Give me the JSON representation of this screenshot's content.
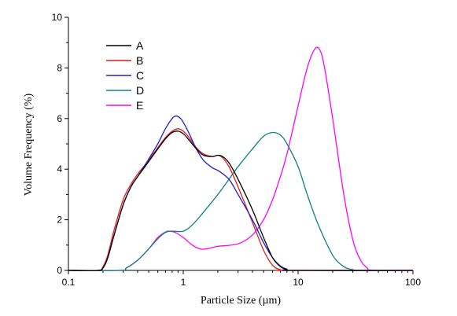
{
  "chart_data": {
    "type": "line",
    "title": "",
    "xlabel": "Particle Size (µm)",
    "ylabel": "Volume Frequency (%)",
    "xscale": "log",
    "xlim": [
      0.1,
      100
    ],
    "ylim": [
      0,
      10
    ],
    "xticks": [
      0.1,
      1,
      10,
      100
    ],
    "xtick_labels": [
      "0.1",
      "1",
      "10",
      "100"
    ],
    "yticks": [
      0,
      2,
      4,
      6,
      8,
      10
    ],
    "ytick_labels": [
      "0",
      "2",
      "4",
      "6",
      "8",
      "10"
    ],
    "grid": false,
    "legend_position": "top-left",
    "series": [
      {
        "name": "A",
        "color": "#000000",
        "points": [
          [
            0.1,
            0
          ],
          [
            0.18,
            0
          ],
          [
            0.2,
            0.1
          ],
          [
            0.22,
            0.5
          ],
          [
            0.25,
            1.4
          ],
          [
            0.3,
            2.6
          ],
          [
            0.35,
            3.3
          ],
          [
            0.4,
            3.7
          ],
          [
            0.5,
            4.3
          ],
          [
            0.6,
            4.8
          ],
          [
            0.7,
            5.2
          ],
          [
            0.8,
            5.45
          ],
          [
            0.9,
            5.5
          ],
          [
            1.0,
            5.4
          ],
          [
            1.1,
            5.2
          ],
          [
            1.3,
            4.8
          ],
          [
            1.5,
            4.55
          ],
          [
            1.8,
            4.5
          ],
          [
            2.0,
            4.55
          ],
          [
            2.2,
            4.5
          ],
          [
            2.5,
            4.25
          ],
          [
            3.0,
            3.6
          ],
          [
            4.0,
            2.4
          ],
          [
            5.0,
            1.3
          ],
          [
            6.0,
            0.5
          ],
          [
            7.0,
            0.15
          ],
          [
            8.0,
            0.03
          ],
          [
            9.0,
            0
          ],
          [
            100,
            0
          ]
        ]
      },
      {
        "name": "B",
        "color": "#e41a1c",
        "points": [
          [
            0.1,
            0
          ],
          [
            0.18,
            0
          ],
          [
            0.2,
            0.15
          ],
          [
            0.22,
            0.6
          ],
          [
            0.25,
            1.6
          ],
          [
            0.3,
            2.8
          ],
          [
            0.35,
            3.4
          ],
          [
            0.4,
            3.8
          ],
          [
            0.5,
            4.35
          ],
          [
            0.6,
            4.85
          ],
          [
            0.7,
            5.25
          ],
          [
            0.8,
            5.5
          ],
          [
            0.9,
            5.6
          ],
          [
            1.0,
            5.5
          ],
          [
            1.1,
            5.3
          ],
          [
            1.3,
            4.85
          ],
          [
            1.5,
            4.6
          ],
          [
            1.8,
            4.5
          ],
          [
            2.0,
            4.55
          ],
          [
            2.2,
            4.45
          ],
          [
            2.5,
            4.1
          ],
          [
            3.0,
            3.3
          ],
          [
            4.0,
            1.9
          ],
          [
            5.0,
            0.8
          ],
          [
            6.0,
            0.2
          ],
          [
            7.0,
            0.03
          ],
          [
            8.0,
            0
          ],
          [
            100,
            0
          ]
        ]
      },
      {
        "name": "C",
        "color": "#1f1fd1",
        "points": [
          [
            0.1,
            0
          ],
          [
            0.18,
            0
          ],
          [
            0.2,
            0.1
          ],
          [
            0.22,
            0.5
          ],
          [
            0.25,
            1.4
          ],
          [
            0.3,
            2.6
          ],
          [
            0.35,
            3.3
          ],
          [
            0.4,
            3.7
          ],
          [
            0.5,
            4.4
          ],
          [
            0.6,
            5.0
          ],
          [
            0.7,
            5.6
          ],
          [
            0.8,
            6.0
          ],
          [
            0.87,
            6.1
          ],
          [
            0.95,
            6.0
          ],
          [
            1.0,
            5.85
          ],
          [
            1.1,
            5.5
          ],
          [
            1.3,
            4.8
          ],
          [
            1.5,
            4.35
          ],
          [
            1.8,
            4.05
          ],
          [
            2.0,
            3.95
          ],
          [
            2.5,
            3.6
          ],
          [
            3.0,
            3.0
          ],
          [
            4.0,
            2.0
          ],
          [
            5.0,
            1.1
          ],
          [
            6.0,
            0.5
          ],
          [
            7.0,
            0.18
          ],
          [
            8.0,
            0.05
          ],
          [
            9.0,
            0
          ],
          [
            100,
            0
          ]
        ]
      },
      {
        "name": "D",
        "color": "#0d8080",
        "points": [
          [
            0.1,
            0
          ],
          [
            0.28,
            0
          ],
          [
            0.32,
            0.1
          ],
          [
            0.4,
            0.4
          ],
          [
            0.5,
            0.85
          ],
          [
            0.6,
            1.25
          ],
          [
            0.7,
            1.5
          ],
          [
            0.8,
            1.55
          ],
          [
            1.0,
            1.55
          ],
          [
            1.2,
            1.8
          ],
          [
            1.5,
            2.3
          ],
          [
            2.0,
            3.0
          ],
          [
            2.5,
            3.6
          ],
          [
            3.0,
            4.1
          ],
          [
            4.0,
            4.8
          ],
          [
            5.0,
            5.3
          ],
          [
            6.0,
            5.45
          ],
          [
            7.0,
            5.35
          ],
          [
            8.0,
            5.0
          ],
          [
            10.0,
            4.1
          ],
          [
            12.0,
            3.0
          ],
          [
            15.0,
            1.8
          ],
          [
            20.0,
            0.6
          ],
          [
            25.0,
            0.15
          ],
          [
            30.0,
            0.03
          ],
          [
            35.0,
            0
          ],
          [
            100,
            0
          ]
        ]
      },
      {
        "name": "E",
        "color": "#ff00ff",
        "points": [
          [
            0.1,
            0
          ],
          [
            0.28,
            0
          ],
          [
            0.32,
            0.1
          ],
          [
            0.4,
            0.4
          ],
          [
            0.5,
            0.85
          ],
          [
            0.6,
            1.3
          ],
          [
            0.7,
            1.52
          ],
          [
            0.75,
            1.55
          ],
          [
            0.85,
            1.5
          ],
          [
            1.0,
            1.3
          ],
          [
            1.2,
            1.0
          ],
          [
            1.4,
            0.85
          ],
          [
            1.6,
            0.85
          ],
          [
            2.0,
            0.95
          ],
          [
            3.0,
            1.05
          ],
          [
            4.0,
            1.4
          ],
          [
            5.0,
            2.0
          ],
          [
            6.0,
            2.8
          ],
          [
            7.0,
            3.7
          ],
          [
            8.0,
            4.6
          ],
          [
            10.0,
            6.5
          ],
          [
            12.0,
            8.0
          ],
          [
            14.0,
            8.75
          ],
          [
            15.5,
            8.7
          ],
          [
            17.0,
            8.0
          ],
          [
            20.0,
            6.0
          ],
          [
            25.0,
            3.0
          ],
          [
            30.0,
            1.2
          ],
          [
            35.0,
            0.4
          ],
          [
            40.0,
            0.1
          ],
          [
            45.0,
            0
          ],
          [
            100,
            0
          ]
        ]
      }
    ]
  }
}
